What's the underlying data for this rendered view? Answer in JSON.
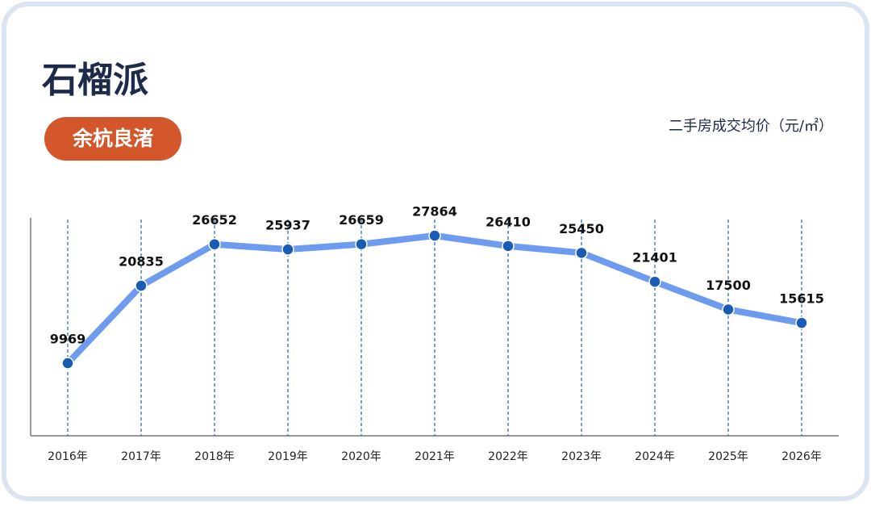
{
  "chart_data": {
    "type": "line",
    "title": "石榴派",
    "subtitle": "余杭良渚",
    "y_label": "二手房成交均价（元/㎡）",
    "categories": [
      "2016年",
      "2017年",
      "2018年",
      "2019年",
      "2020年",
      "2021年",
      "2022年",
      "2023年",
      "2024年",
      "2025年",
      "2026年"
    ],
    "values": [
      9969,
      20835,
      26652,
      25937,
      26659,
      27864,
      26410,
      25450,
      21401,
      17500,
      15615
    ],
    "color": "#6d9bf0",
    "marker_color": "#1a5bb5"
  }
}
